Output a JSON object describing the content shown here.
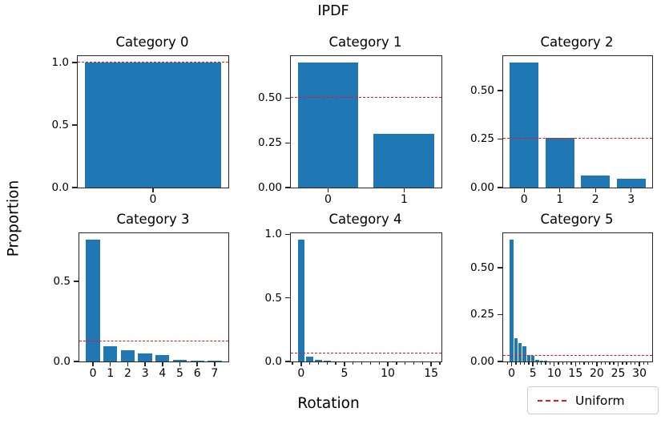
{
  "figure": {
    "suptitle": "IPDF",
    "xlabel": "Rotation",
    "ylabel": "Proportion",
    "legend": {
      "label": "Uniform"
    },
    "colors": {
      "bar": "#1f77b4",
      "uniform_line": "#fb0f0f",
      "axis": "#262626",
      "legend_border": "#cccccc",
      "background": "#ffffff"
    }
  },
  "chart_data": [
    {
      "type": "bar",
      "title": "Category 0",
      "x": [
        0
      ],
      "values": [
        1.0
      ],
      "bar_width": 0.8,
      "xlim": [
        -0.44,
        0.44
      ],
      "ylim": [
        0,
        1.05
      ],
      "uniform": 1.0,
      "yticks": {
        "values": [
          0.0,
          0.5,
          1.0
        ],
        "labels": [
          "0.0",
          "0.5",
          "1.0"
        ]
      },
      "xticks": {
        "values": [
          0
        ],
        "labels": [
          "0"
        ]
      },
      "minor_xticks": false
    },
    {
      "type": "bar",
      "title": "Category 1",
      "x": [
        0,
        1
      ],
      "values": [
        0.7,
        0.3
      ],
      "bar_width": 0.8,
      "xlim": [
        -0.49,
        1.49
      ],
      "ylim": [
        0,
        0.735
      ],
      "uniform": 0.5,
      "yticks": {
        "values": [
          0.0,
          0.25,
          0.5
        ],
        "labels": [
          "0.00",
          "0.25",
          "0.50"
        ]
      },
      "xticks": {
        "values": [
          0,
          1
        ],
        "labels": [
          "0",
          "1"
        ]
      },
      "minor_xticks": false
    },
    {
      "type": "bar",
      "title": "Category 2",
      "x": [
        0,
        1,
        2,
        3
      ],
      "values": [
        0.645,
        0.255,
        0.06,
        0.045
      ],
      "bar_width": 0.8,
      "xlim": [
        -0.59,
        3.59
      ],
      "ylim": [
        0,
        0.677
      ],
      "uniform": 0.25,
      "yticks": {
        "values": [
          0.0,
          0.25,
          0.5
        ],
        "labels": [
          "0.00",
          "0.25",
          "0.50"
        ]
      },
      "xticks": {
        "values": [
          0,
          1,
          2,
          3
        ],
        "labels": [
          "0",
          "1",
          "2",
          "3"
        ]
      },
      "minor_xticks": false
    },
    {
      "type": "bar",
      "title": "Category 3",
      "x": [
        0,
        1,
        2,
        3,
        4,
        5,
        6,
        7
      ],
      "values": [
        0.76,
        0.095,
        0.07,
        0.05,
        0.04,
        0.012,
        0.004,
        0.003
      ],
      "bar_width": 0.8,
      "xlim": [
        -0.79,
        7.79
      ],
      "ylim": [
        0,
        0.8
      ],
      "uniform": 0.125,
      "yticks": {
        "values": [
          0.0,
          0.5
        ],
        "labels": [
          "0.0",
          "0.5"
        ]
      },
      "xticks": {
        "values": [
          0,
          1,
          2,
          3,
          4,
          5,
          6,
          7
        ],
        "labels": [
          "0",
          "1",
          "2",
          "3",
          "4",
          "5",
          "6",
          "7"
        ]
      },
      "minor_xticks": false
    },
    {
      "type": "bar",
      "title": "Category 4",
      "x": [
        0,
        1,
        2,
        3,
        4,
        5,
        6,
        7,
        8,
        9,
        10,
        11,
        12,
        13,
        14,
        15
      ],
      "values": [
        0.96,
        0.035,
        0.012,
        0.004,
        0.002,
        0.002,
        0.001,
        0.001,
        0.001,
        0.001,
        0.001,
        0.001,
        0.001,
        0.001,
        0.001,
        0.001
      ],
      "bar_width": 0.8,
      "xlim": [
        -1.19,
        16.19
      ],
      "ylim": [
        0,
        1.008
      ],
      "uniform": 0.0625,
      "yticks": {
        "values": [
          0.0,
          0.5,
          1.0
        ],
        "labels": [
          "0.0",
          "0.5",
          "1.0"
        ]
      },
      "xticks": {
        "values": [
          0,
          5,
          10,
          15
        ],
        "labels": [
          "0",
          "5",
          "10",
          "15"
        ]
      },
      "minor_xticks": true
    },
    {
      "type": "bar",
      "title": "Category 5",
      "x": [
        0,
        1,
        2,
        3,
        4,
        5,
        6,
        7,
        8,
        9,
        10,
        11,
        12,
        13,
        14,
        15,
        16,
        17,
        18,
        19,
        20,
        21,
        22,
        23,
        24,
        25,
        26,
        27,
        28,
        29,
        30,
        31
      ],
      "values": [
        0.65,
        0.125,
        0.1,
        0.08,
        0.034,
        0.028,
        0.01,
        0.005,
        0.003,
        0.002,
        0.002,
        0.001,
        0.001,
        0.001,
        0.001,
        0.001,
        0.001,
        0.001,
        0.001,
        0.001,
        0.001,
        0.001,
        0.001,
        0.001,
        0.001,
        0.001,
        0.001,
        0.001,
        0.001,
        0.001,
        0.001,
        0.001
      ],
      "bar_width": 0.8,
      "xlim": [
        -1.99,
        32.99
      ],
      "ylim": [
        0,
        0.683
      ],
      "uniform": 0.03125,
      "yticks": {
        "values": [
          0.0,
          0.25,
          0.5
        ],
        "labels": [
          "0.00",
          "0.25",
          "0.50"
        ]
      },
      "xticks": {
        "values": [
          0,
          5,
          10,
          15,
          20,
          25,
          30
        ],
        "labels": [
          "0",
          "5",
          "10",
          "15",
          "20",
          "25",
          "30"
        ]
      },
      "minor_xticks": true
    }
  ]
}
